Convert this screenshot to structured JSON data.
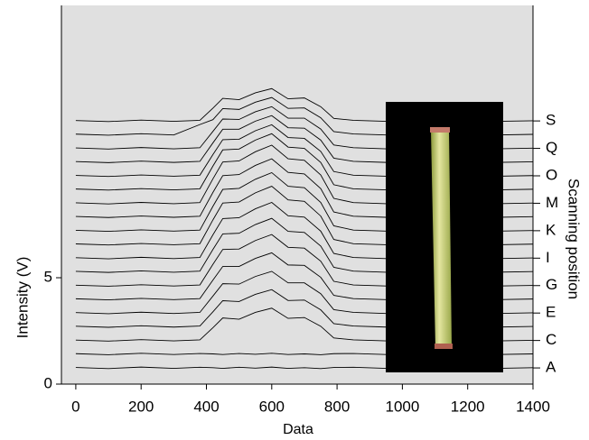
{
  "chart_data": {
    "type": "line",
    "x_label": "Data",
    "y_label": "Intensity (V)",
    "y2_label": "Scanning position",
    "x": [
      0,
      100,
      200,
      300,
      380,
      420,
      450,
      500,
      550,
      600,
      650,
      700,
      750,
      790,
      850,
      950,
      1100,
      1250,
      1400
    ],
    "series": [
      {
        "color": "#000000",
        "values": [
          0.78,
          0.73,
          0.8,
          0.74,
          0.79,
          0.77,
          0.74,
          0.79,
          0.75,
          0.8,
          0.74,
          0.77,
          0.73,
          0.78,
          0.79,
          0.74,
          0.78,
          0.73,
          0.77
        ]
      },
      {
        "color": "#000000",
        "values": [
          1.43,
          1.38,
          1.45,
          1.39,
          1.44,
          1.42,
          1.39,
          1.44,
          1.4,
          1.45,
          1.39,
          1.42,
          1.38,
          1.43,
          1.44,
          1.39,
          1.43,
          1.38,
          1.42
        ]
      },
      {
        "color": "#000000",
        "values": [
          2.07,
          2.02,
          2.09,
          2.03,
          2.08,
          2.65,
          3.11,
          3.05,
          3.37,
          3.57,
          3.09,
          3.13,
          2.72,
          2.17,
          2.08,
          2.03,
          2.07,
          2.02,
          2.06
        ]
      },
      {
        "color": "#000000",
        "values": [
          2.72,
          2.67,
          2.74,
          2.68,
          2.73,
          3.4,
          3.92,
          3.88,
          4.22,
          4.44,
          3.93,
          3.95,
          3.49,
          2.84,
          2.73,
          2.68,
          2.72,
          2.67,
          2.71
        ]
      },
      {
        "color": "#000000",
        "values": [
          3.36,
          3.31,
          3.38,
          3.32,
          3.37,
          4.14,
          4.72,
          4.7,
          5.06,
          5.3,
          4.76,
          4.76,
          4.25,
          3.5,
          3.37,
          3.32,
          3.36,
          3.31,
          3.35
        ]
      },
      {
        "color": "#000000",
        "values": [
          4.01,
          3.96,
          4.03,
          3.97,
          4.02,
          4.89,
          5.53,
          5.53,
          5.91,
          6.17,
          5.6,
          5.58,
          5.02,
          4.17,
          4.02,
          3.97,
          4.01,
          3.96,
          4.0
        ]
      },
      {
        "color": "#000000",
        "values": [
          4.65,
          4.6,
          4.67,
          4.61,
          4.66,
          5.63,
          6.33,
          6.35,
          6.75,
          7.03,
          6.43,
          6.39,
          5.78,
          4.83,
          4.66,
          4.61,
          4.65,
          4.6,
          4.64
        ]
      },
      {
        "color": "#000000",
        "values": [
          5.3,
          5.25,
          5.32,
          5.26,
          5.31,
          6.33,
          7.06,
          7.09,
          7.5,
          7.79,
          7.18,
          7.13,
          6.49,
          5.49,
          5.31,
          5.26,
          5.3,
          5.25,
          5.29
        ]
      },
      {
        "color": "#000000",
        "values": [
          5.94,
          5.89,
          5.96,
          5.9,
          5.95,
          7.02,
          7.78,
          7.82,
          8.24,
          8.54,
          7.91,
          7.85,
          7.19,
          6.14,
          5.95,
          5.9,
          5.94,
          5.89,
          5.93
        ]
      },
      {
        "color": "#000000",
        "values": [
          6.59,
          6.54,
          6.61,
          6.55,
          6.6,
          7.72,
          8.51,
          8.56,
          8.99,
          9.3,
          8.66,
          8.59,
          7.9,
          6.8,
          6.6,
          6.55,
          6.59,
          6.54,
          6.58
        ]
      },
      {
        "color": "#000000",
        "values": [
          7.23,
          7.18,
          7.25,
          7.19,
          7.24,
          8.36,
          9.15,
          9.2,
          9.63,
          9.94,
          9.3,
          9.23,
          8.54,
          7.44,
          7.24,
          7.19,
          7.23,
          7.18,
          7.22
        ]
      },
      {
        "color": "#000000",
        "values": [
          7.88,
          7.83,
          7.9,
          7.84,
          7.89,
          9.01,
          9.8,
          9.85,
          10.28,
          10.59,
          9.95,
          9.88,
          9.19,
          8.09,
          7.89,
          7.84,
          7.88,
          7.83,
          7.87
        ]
      },
      {
        "color": "#000000",
        "values": [
          8.52,
          8.47,
          8.54,
          8.48,
          8.53,
          9.65,
          10.44,
          10.49,
          10.92,
          11.23,
          10.59,
          10.52,
          9.83,
          8.73,
          8.53,
          8.48,
          8.52,
          8.47,
          8.51
        ]
      },
      {
        "color": "#000000",
        "values": [
          9.17,
          9.12,
          9.19,
          9.13,
          9.18,
          10.25,
          11.01,
          11.05,
          11.47,
          11.77,
          11.14,
          11.08,
          10.42,
          9.37,
          9.18,
          9.13,
          9.17,
          9.12,
          9.16
        ]
      },
      {
        "color": "#000000",
        "values": [
          9.81,
          9.76,
          9.83,
          9.77,
          9.82,
          10.79,
          11.49,
          11.51,
          11.91,
          12.19,
          11.59,
          11.55,
          10.94,
          9.99,
          9.82,
          9.77,
          9.81,
          9.76,
          9.8
        ]
      },
      {
        "color": "#000000",
        "values": [
          10.46,
          10.41,
          10.48,
          10.42,
          10.47,
          11.34,
          11.98,
          11.98,
          12.36,
          12.62,
          12.05,
          12.03,
          11.47,
          10.62,
          10.47,
          10.42,
          10.46,
          10.41,
          10.45
        ]
      },
      {
        "color": "#000000",
        "values": [
          11.1,
          11.05,
          11.12,
          11.06,
          11.11,
          11.88,
          12.46,
          12.44,
          12.8,
          13.04,
          12.5,
          12.5,
          11.99,
          11.24,
          11.11,
          11.06,
          11.1,
          11.05,
          11.09
        ]
      },
      {
        "color": "#000000",
        "values": [
          11.75,
          11.7,
          11.77,
          11.71,
          12.2,
          12.43,
          12.95,
          12.91,
          13.25,
          13.47,
          12.96,
          12.98,
          12.52,
          11.87,
          11.76,
          11.71,
          11.75,
          11.7,
          11.74
        ]
      },
      {
        "color": "#000000",
        "values": [
          12.39,
          12.34,
          12.41,
          12.35,
          12.4,
          12.97,
          13.43,
          13.37,
          13.69,
          13.89,
          13.41,
          13.45,
          13.04,
          12.49,
          12.4,
          12.35,
          12.39,
          12.34,
          12.38
        ]
      }
    ],
    "xlim": [
      -44,
      1400
    ],
    "xticks": [
      0,
      200,
      400,
      600,
      800,
      1000,
      1200,
      1400
    ],
    "ylim": [
      0,
      17.8
    ],
    "yticks": [
      0,
      5
    ],
    "y2lim": [
      0,
      17.8
    ],
    "y2ticks": [
      {
        "value": 0.76,
        "label": "A"
      },
      {
        "value": 2.05,
        "label": "C"
      },
      {
        "value": 3.34,
        "label": "E"
      },
      {
        "value": 4.63,
        "label": "G"
      },
      {
        "value": 5.92,
        "label": "I"
      },
      {
        "value": 7.21,
        "label": "K"
      },
      {
        "value": 8.5,
        "label": "M"
      },
      {
        "value": 9.79,
        "label": "O"
      },
      {
        "value": 11.08,
        "label": "Q"
      },
      {
        "value": 12.37,
        "label": "S"
      }
    ],
    "background": "#e0e0e0"
  }
}
